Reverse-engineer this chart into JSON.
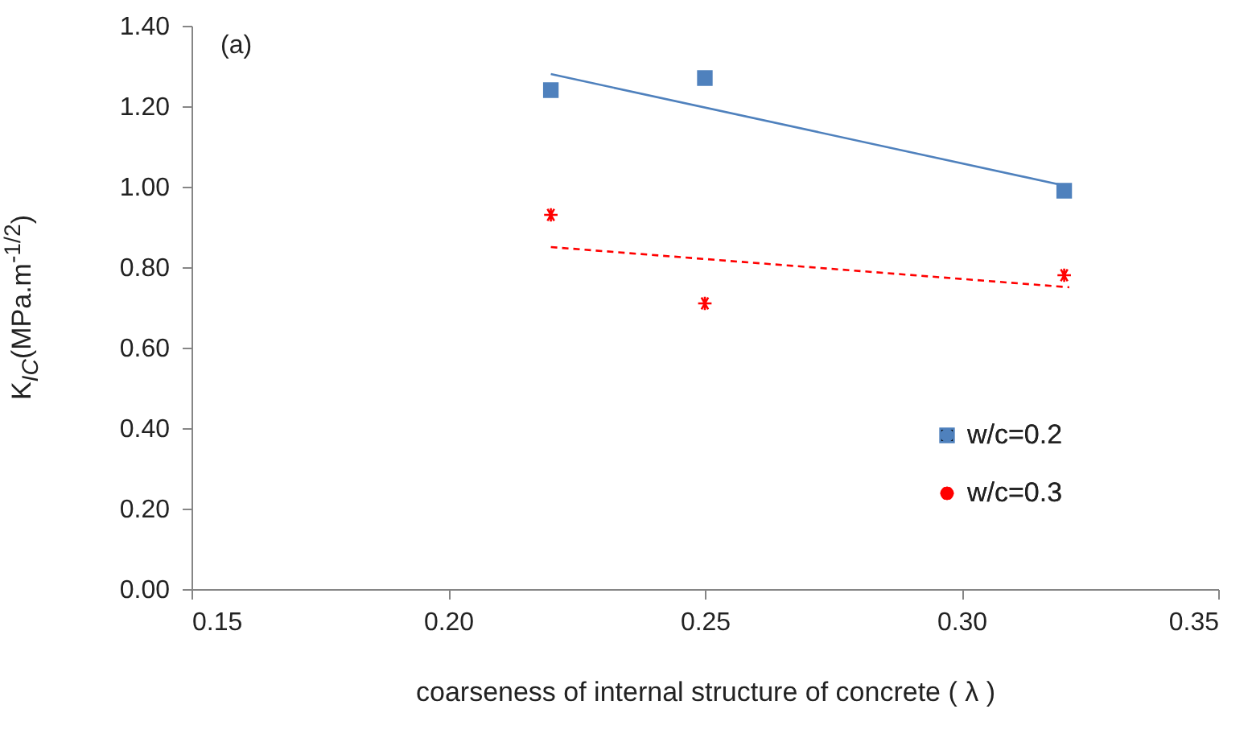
{
  "chart_data": {
    "type": "scatter",
    "xlabel": "coarseness  of internal structure of concrete ( λ )",
    "ylabel": "K$_{IC}$(MPa.m$^{-1/2}$)",
    "annotations": [
      "(a)"
    ],
    "xlim": [
      0.15,
      0.35
    ],
    "xticks": [
      {
        "value": 0.15,
        "label": "0.15"
      },
      {
        "value": 0.2,
        "label": "0.20"
      },
      {
        "value": 0.25,
        "label": "0.25"
      },
      {
        "value": 0.3,
        "label": "0.30"
      },
      {
        "value": 0.35,
        "label": "0.35"
      }
    ],
    "ylim": [
      0,
      1.4
    ],
    "yticks": [
      {
        "value": 0,
        "label": "0.00"
      },
      {
        "value": 0.2,
        "label": "0.20"
      },
      {
        "value": 0.4,
        "label": "0.40"
      },
      {
        "value": 0.6,
        "label": "0.60"
      },
      {
        "value": 0.8,
        "label": "0.80"
      },
      {
        "value": 1.0,
        "label": "1.00"
      },
      {
        "value": 1.2,
        "label": "1.20"
      },
      {
        "value": 1.4,
        "label": "1.40"
      }
    ],
    "grid": false,
    "legend": "right",
    "series": [
      {
        "name": "w/c=0.2",
        "marker": "square",
        "color": "#4f81bd",
        "x": [
          0.22,
          0.25,
          0.32
        ],
        "values": [
          1.24,
          1.27,
          0.99
        ]
      },
      {
        "name": "w/c=0.3",
        "marker": "cross",
        "color": "#ff0000",
        "x": [
          0.22,
          0.25,
          0.32
        ],
        "values": [
          0.93,
          0.71,
          0.78
        ]
      },
      {
        "type": "line",
        "color": "#4f81bd",
        "line_style": "solid",
        "x": [
          0.22,
          0.321
        ],
        "values": [
          1.28,
          1.0
        ]
      },
      {
        "type": "line",
        "color": "#ff0000",
        "line_style": "dashed",
        "x": [
          0.22,
          0.321
        ],
        "values": [
          0.85,
          0.75
        ]
      }
    ]
  }
}
